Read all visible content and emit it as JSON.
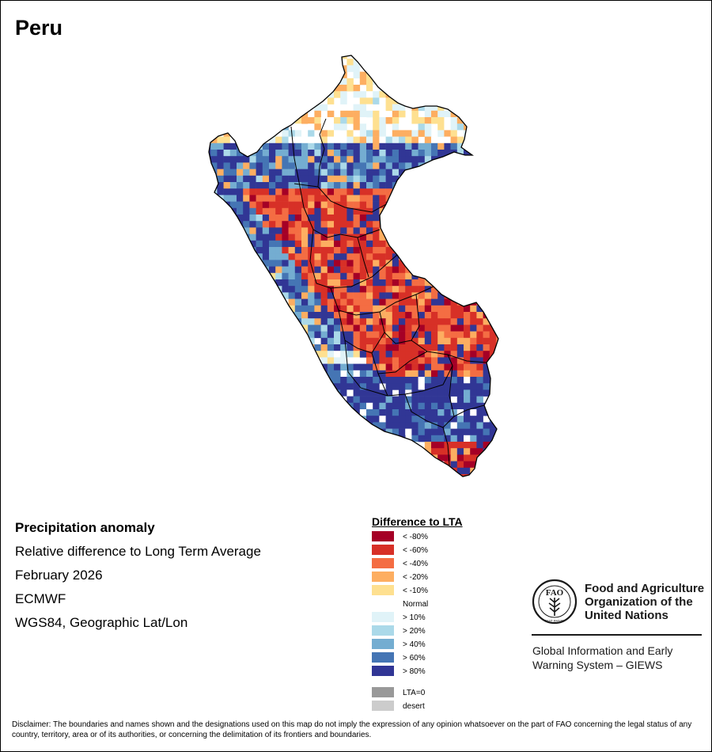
{
  "title": "Peru",
  "info": {
    "heading": "Precipitation anomaly",
    "subtitle": "Relative difference to Long Term Average",
    "period": "February 2026",
    "model": "ECMWF",
    "projection": "WGS84, Geographic Lat/Lon"
  },
  "legend": {
    "title": "Difference to LTA",
    "items": [
      {
        "label": "< -80%",
        "color": "#a50026"
      },
      {
        "label": "< -60%",
        "color": "#d73027"
      },
      {
        "label": "< -40%",
        "color": "#f46d43"
      },
      {
        "label": "< -20%",
        "color": "#fdae61"
      },
      {
        "label": "< -10%",
        "color": "#fee090"
      },
      {
        "label": "Normal",
        "color": "#ffffff"
      },
      {
        "label": "> 10%",
        "color": "#e0f3f8"
      },
      {
        "label": "> 20%",
        "color": "#abd9e9"
      },
      {
        "label": "> 40%",
        "color": "#74add1"
      },
      {
        "label": "> 60%",
        "color": "#4575b4"
      },
      {
        "label": "> 80%",
        "color": "#313695"
      }
    ],
    "extra": [
      {
        "label": "LTA=0",
        "color": "#999999"
      },
      {
        "label": "desert",
        "color": "#cccccc"
      }
    ]
  },
  "fao": {
    "logo_letters": "FAO",
    "logo_motto": "FIAT PANIS",
    "name_line1": "Food and Agriculture",
    "name_line2": "Organization of the",
    "name_line3": "United Nations",
    "giews_line1": "Global Information and Early",
    "giews_line2": "Warning System – GIEWS"
  },
  "disclaimer": "Disclaimer: The boundaries and names shown and the designations used on this map do not imply the expression of any opinion whatsoever on the part of FAO concerning the legal status of any country, territory, area or of its authorities, or concerning the delimitation of its frontiers and boundaries."
}
